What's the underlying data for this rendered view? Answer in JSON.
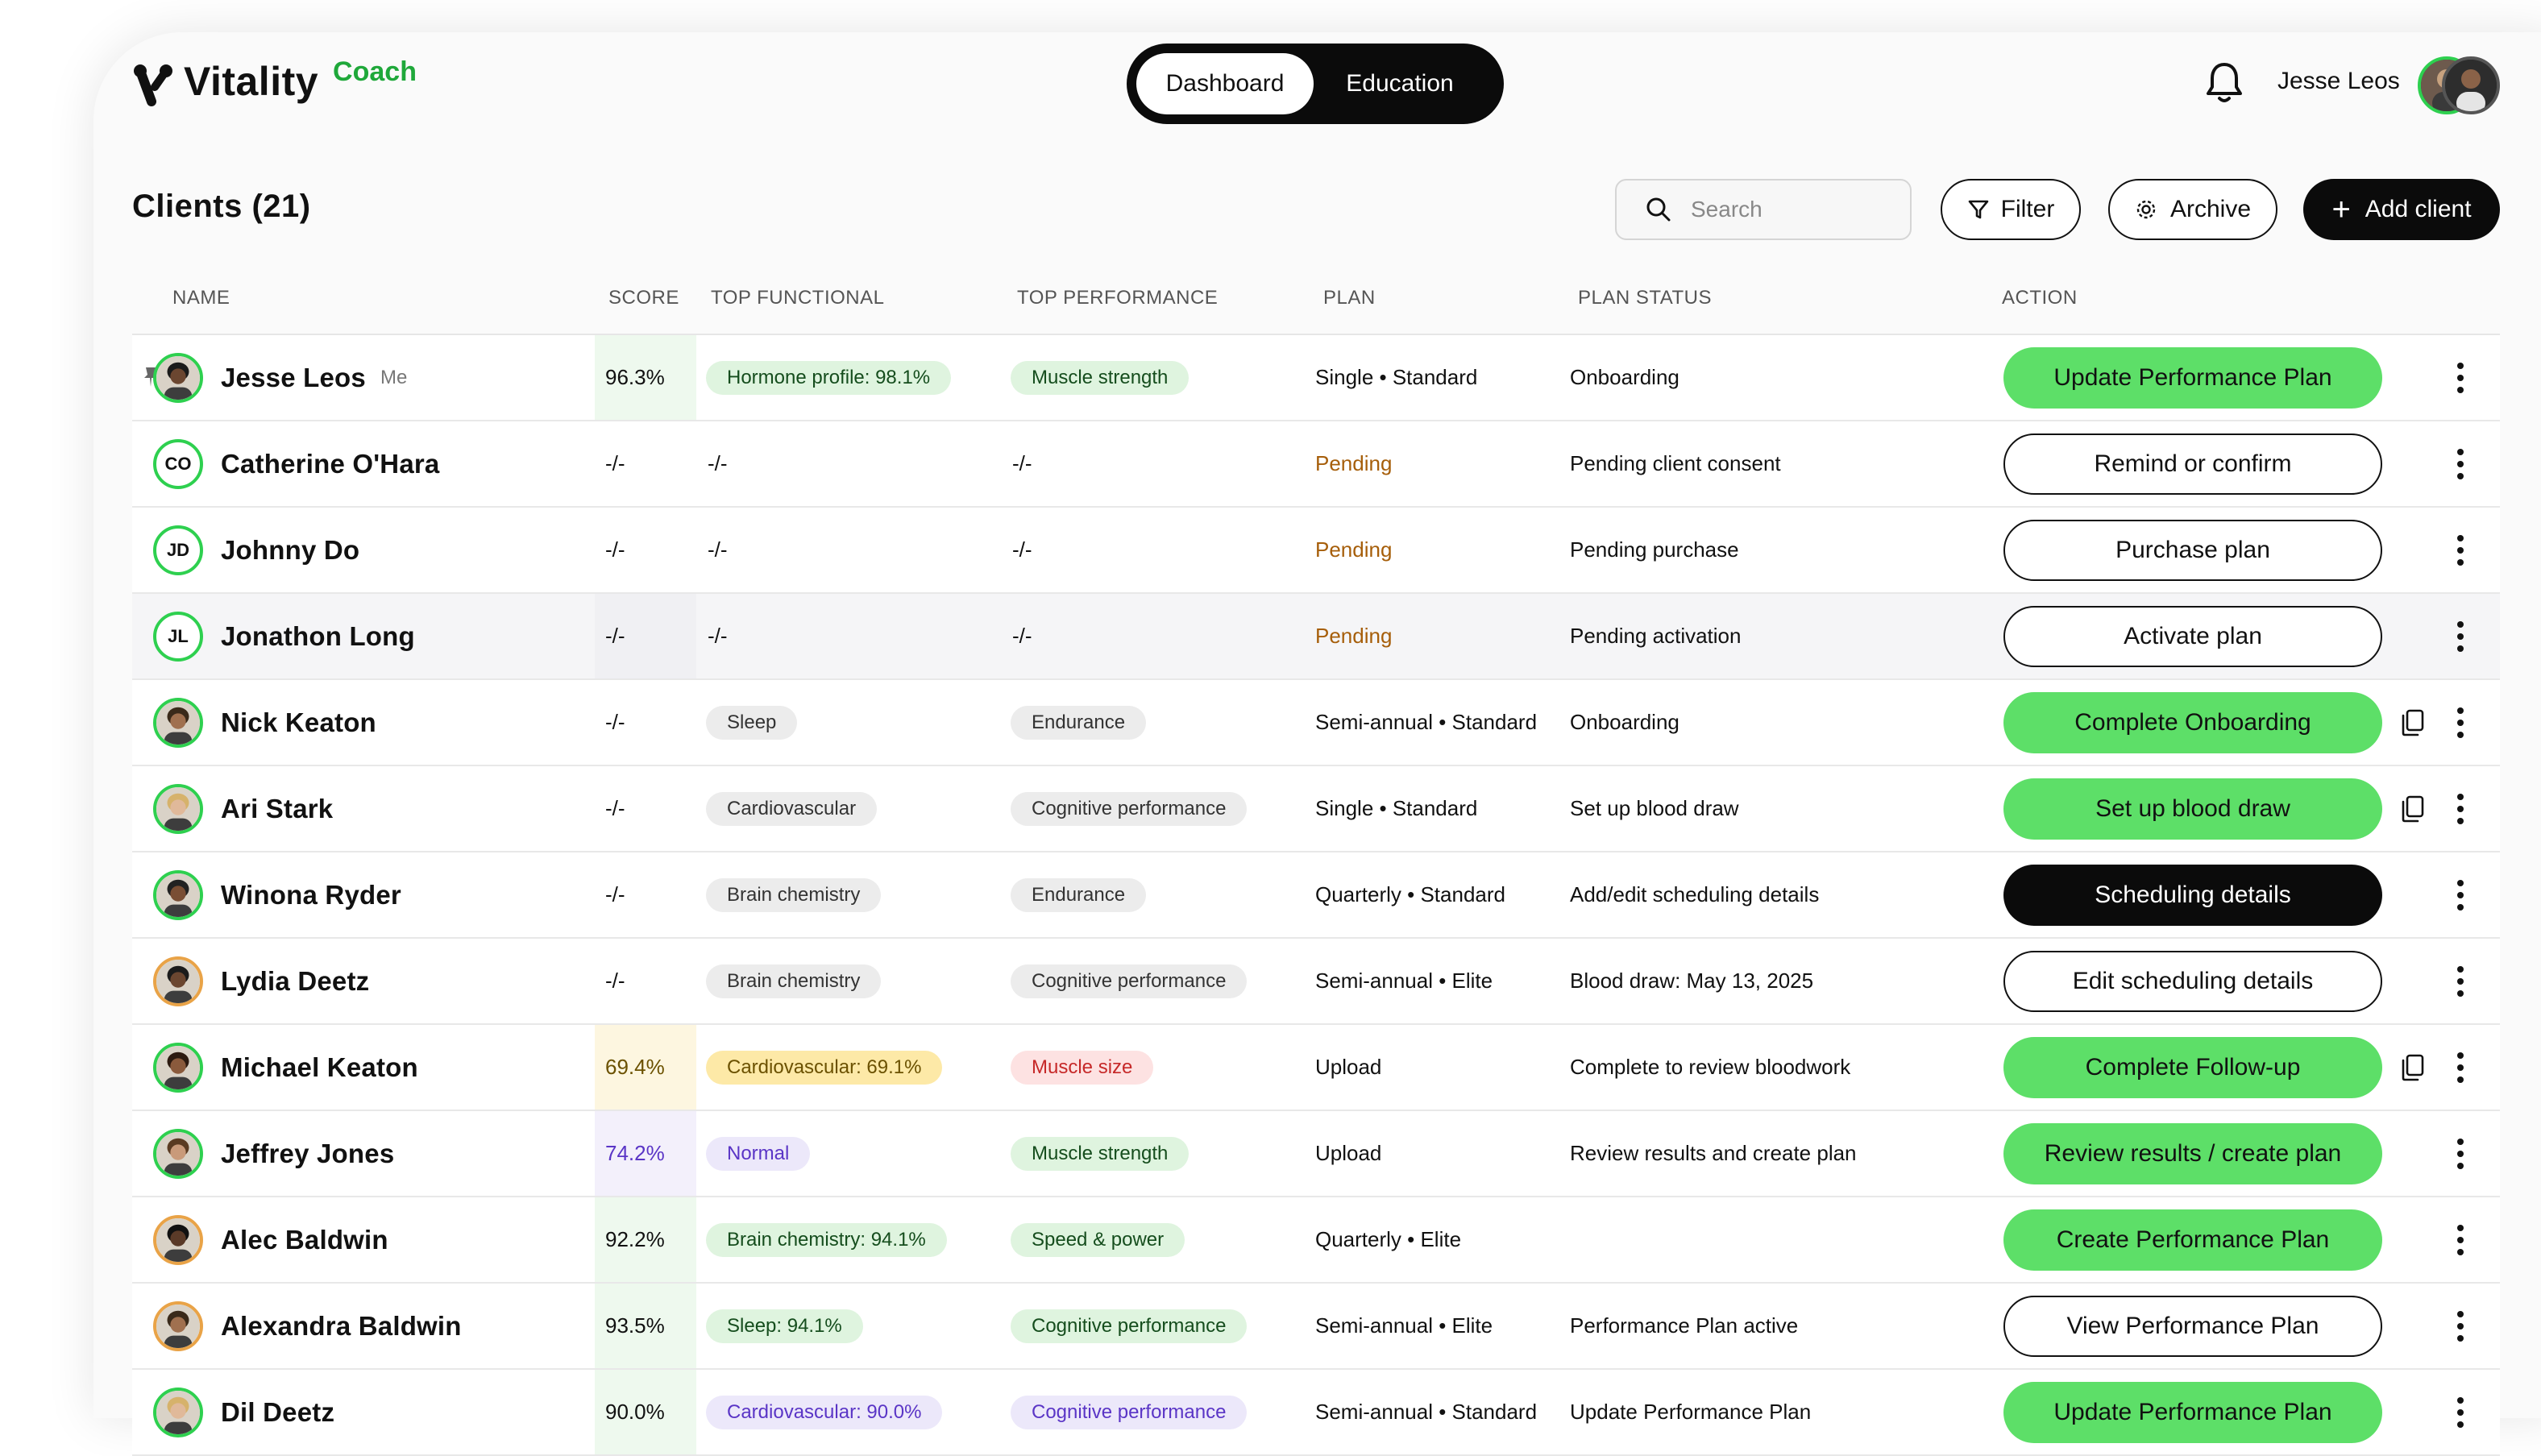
{
  "app": {
    "brand": "Vitality",
    "brand_sub": "Coach"
  },
  "nav": {
    "tabs": [
      {
        "label": "Dashboard",
        "active": true
      },
      {
        "label": "Education",
        "active": false
      }
    ]
  },
  "header": {
    "user_name": "Jesse Leos"
  },
  "page": {
    "title": "Clients (21)"
  },
  "toolbar": {
    "search_placeholder": "Search",
    "filter_label": "Filter",
    "archive_label": "Archive",
    "add_label": "Add client"
  },
  "table": {
    "headers": [
      "NAME",
      "SCORE",
      "TOP FUNCTIONAL",
      "TOP PERFORMANCE",
      "PLAN",
      "PLAN STATUS",
      "ACTION"
    ],
    "rows": [
      {
        "name": "Jesse Leos",
        "me": "Me",
        "avatar": "photo",
        "score": "96.3%",
        "score_bg": "green",
        "functional": "Hormone profile: 98.1%",
        "functional_style": "green",
        "performance": "Muscle strength",
        "performance_style": "green",
        "plan": "Single • Standard",
        "plan_pending": false,
        "status": "Onboarding",
        "action": "Update Performance Plan",
        "action_style": "green",
        "copy": false
      },
      {
        "name": "Catherine O'Hara",
        "initials": "CO",
        "avatar": "initials",
        "score": "-/-",
        "functional": "-/-",
        "performance": "-/-",
        "plan": "Pending",
        "plan_pending": true,
        "status": "Pending client consent",
        "action": "Remind or confirm",
        "action_style": "outline",
        "copy": false
      },
      {
        "name": "Johnny Do",
        "initials": "JD",
        "avatar": "initials",
        "score": "-/-",
        "functional": "-/-",
        "performance": "-/-",
        "plan": "Pending",
        "plan_pending": true,
        "status": "Pending purchase",
        "action": "Purchase plan",
        "action_style": "outline",
        "copy": false
      },
      {
        "name": "Jonathon Long",
        "initials": "JL",
        "avatar": "initials",
        "score": "-/-",
        "score_bg": "shade",
        "functional": "-/-",
        "performance": "-/-",
        "plan": "Pending",
        "plan_pending": true,
        "status": "Pending activation",
        "action": "Activate plan",
        "action_style": "outline",
        "copy": false,
        "shaded": true
      },
      {
        "name": "Nick Keaton",
        "avatar": "photo",
        "score": "-/-",
        "functional": "Sleep",
        "functional_style": "gray",
        "performance": "Endurance",
        "performance_style": "gray",
        "plan": "Semi-annual • Standard",
        "status": "Onboarding",
        "action": "Complete Onboarding",
        "action_style": "green",
        "copy": true
      },
      {
        "name": "Ari Stark",
        "avatar": "photo",
        "score": "-/-",
        "functional": "Cardiovascular",
        "functional_style": "gray",
        "performance": "Cognitive performance",
        "performance_style": "gray",
        "plan": "Single • Standard",
        "status": "Set up blood draw",
        "action": "Set up blood draw",
        "action_style": "green",
        "copy": true
      },
      {
        "name": "Winona Ryder",
        "avatar": "photo",
        "score": "-/-",
        "functional": "Brain chemistry",
        "functional_style": "gray",
        "performance": "Endurance",
        "performance_style": "gray",
        "plan": "Quarterly • Standard",
        "status": "Add/edit scheduling details",
        "action": "Scheduling details",
        "action_style": "black",
        "copy": false
      },
      {
        "name": "Lydia Deetz",
        "avatar": "photo",
        "avatar_ring": "orange",
        "score": "-/-",
        "functional": "Brain chemistry",
        "functional_style": "gray",
        "performance": "Cognitive performance",
        "performance_style": "gray",
        "plan": "Semi-annual • Elite",
        "status": "Blood draw: May 13, 2025",
        "action": "Edit scheduling details",
        "action_style": "outline",
        "copy": false
      },
      {
        "name": "Michael Keaton",
        "avatar": "photo",
        "score": "69.4%",
        "score_bg": "yellow",
        "functional": "Cardiovascular: 69.1%",
        "functional_style": "yellow",
        "performance": "Muscle size",
        "performance_style": "pink",
        "plan": "Upload",
        "status": "Complete to review bloodwork",
        "action": "Complete Follow-up",
        "action_style": "green",
        "copy": true
      },
      {
        "name": "Jeffrey Jones",
        "avatar": "photo",
        "score": "74.2%",
        "score_bg": "purple",
        "functional": "Normal",
        "functional_style": "purple",
        "performance": "Muscle strength",
        "performance_style": "green",
        "plan": "Upload",
        "status": "Review results and create plan",
        "action": "Review results / create plan",
        "action_style": "green",
        "copy": false
      },
      {
        "name": "Alec Baldwin",
        "avatar": "photo",
        "avatar_ring": "orange",
        "score": "92.2%",
        "score_bg": "green",
        "functional": "Brain chemistry: 94.1%",
        "functional_style": "green",
        "performance": "Speed & power",
        "performance_style": "green",
        "plan": "Quarterly • Elite",
        "status": "",
        "action": "Create Performance Plan",
        "action_style": "green",
        "copy": false
      },
      {
        "name": "Alexandra Baldwin",
        "avatar": "photo",
        "avatar_ring": "orange",
        "score": "93.5%",
        "score_bg": "green",
        "functional": "Sleep: 94.1%",
        "functional_style": "green",
        "performance": "Cognitive performance",
        "performance_style": "green",
        "plan": "Semi-annual • Elite",
        "status": "Performance Plan active",
        "action": "View Performance Plan",
        "action_style": "outline",
        "copy": false
      },
      {
        "name": "Dil Deetz",
        "avatar": "photo",
        "score": "90.0%",
        "score_bg": "green",
        "functional": "Cardiovascular: 90.0%",
        "functional_style": "purple",
        "performance": "Cognitive performance",
        "performance_style": "purple",
        "plan": "Semi-annual • Standard",
        "status": "Update Performance Plan",
        "action": "Update Performance Plan",
        "action_style": "green",
        "copy": false
      }
    ]
  },
  "colors": {
    "accent_green": "#5ddf68",
    "brand_green": "#1fa83a",
    "pending_orange": "#a65e0a",
    "black": "#0b0b0b"
  }
}
